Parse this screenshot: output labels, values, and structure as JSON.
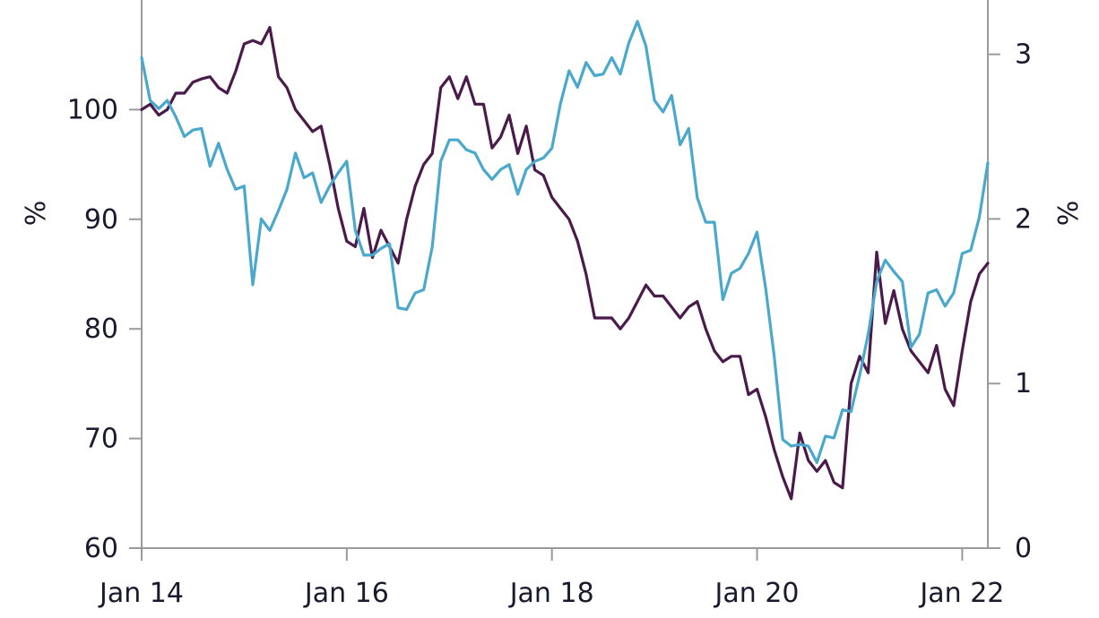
{
  "chart_data": {
    "type": "line",
    "title": "",
    "left_axis": {
      "label": "%",
      "ticks": [
        60,
        70,
        80,
        90,
        100
      ],
      "ylim": [
        60,
        110
      ]
    },
    "right_axis": {
      "label": "%",
      "ticks": [
        0,
        1,
        2,
        3
      ],
      "ylim": [
        0,
        3.33
      ]
    },
    "x_ticks": [
      "Jan 14",
      "Jan 16",
      "Jan 18",
      "Jan 20",
      "Jan 22"
    ],
    "x_range": [
      "2014-01",
      "2022-04"
    ],
    "grid": false,
    "colors": {
      "purple": "#4a1a4a",
      "blue": "#4aa8cc",
      "axis": "#9a9a9a",
      "text": "#1a1a2e"
    },
    "series": [
      {
        "axis": "left",
        "color": "#4a1a4a",
        "x": [
          "2014-01",
          "2014-02",
          "2014-03",
          "2014-04",
          "2014-05",
          "2014-06",
          "2014-07",
          "2014-08",
          "2014-09",
          "2014-10",
          "2014-11",
          "2014-12",
          "2015-01",
          "2015-02",
          "2015-03",
          "2015-04",
          "2015-05",
          "2015-06",
          "2015-07",
          "2015-08",
          "2015-09",
          "2015-10",
          "2015-11",
          "2015-12",
          "2016-01",
          "2016-02",
          "2016-03",
          "2016-04",
          "2016-05",
          "2016-06",
          "2016-07",
          "2016-08",
          "2016-09",
          "2016-10",
          "2016-11",
          "2016-12",
          "2017-01",
          "2017-02",
          "2017-03",
          "2017-04",
          "2017-05",
          "2017-06",
          "2017-07",
          "2017-08",
          "2017-09",
          "2017-10",
          "2017-11",
          "2017-12",
          "2018-01",
          "2018-02",
          "2018-03",
          "2018-04",
          "2018-05",
          "2018-06",
          "2018-07",
          "2018-08",
          "2018-09",
          "2018-10",
          "2018-11",
          "2018-12",
          "2019-01",
          "2019-02",
          "2019-03",
          "2019-04",
          "2019-05",
          "2019-06",
          "2019-07",
          "2019-08",
          "2019-09",
          "2019-10",
          "2019-11",
          "2019-12",
          "2020-01",
          "2020-02",
          "2020-03",
          "2020-04",
          "2020-05",
          "2020-06",
          "2020-07",
          "2020-08",
          "2020-09",
          "2020-10",
          "2020-11",
          "2020-12",
          "2021-01",
          "2021-02",
          "2021-03",
          "2021-04",
          "2021-05",
          "2021-06",
          "2021-07",
          "2021-08",
          "2021-09",
          "2021-10",
          "2021-11",
          "2021-12",
          "2022-01",
          "2022-02",
          "2022-03",
          "2022-04"
        ],
        "values": [
          100.0,
          100.5,
          99.5,
          100.0,
          101.5,
          101.5,
          102.5,
          102.8,
          103.0,
          102.0,
          101.5,
          103.5,
          106.0,
          106.3,
          106.0,
          107.5,
          103.0,
          102.0,
          100.0,
          99.0,
          98.0,
          98.5,
          95.0,
          91.0,
          88.0,
          87.5,
          91.0,
          86.5,
          89.0,
          87.5,
          86.0,
          90.0,
          93.0,
          95.0,
          96.0,
          102.0,
          103.0,
          101.0,
          103.0,
          100.5,
          100.5,
          96.5,
          97.5,
          99.5,
          96.0,
          98.5,
          94.5,
          94.0,
          92.0,
          91.0,
          90.0,
          88.0,
          85.0,
          81.0,
          81.0,
          81.0,
          80.0,
          81.0,
          82.5,
          84.0,
          83.0,
          83.0,
          82.0,
          81.0,
          82.0,
          82.5,
          80.0,
          78.0,
          77.0,
          77.5,
          77.5,
          74.0,
          74.5,
          72.0,
          69.0,
          66.5,
          64.5,
          70.5,
          68.0,
          67.0,
          68.0,
          66.0,
          65.5,
          75.0,
          77.5,
          76.0,
          87.0,
          80.5,
          83.5,
          80.0,
          78.0,
          77.0,
          76.0,
          78.5,
          74.5,
          73.0,
          78.0,
          82.5,
          85.0,
          86.0
        ]
      },
      {
        "axis": "right",
        "color": "#4aa8cc",
        "x": [
          "2014-01",
          "2014-02",
          "2014-03",
          "2014-04",
          "2014-05",
          "2014-06",
          "2014-07",
          "2014-08",
          "2014-09",
          "2014-10",
          "2014-11",
          "2014-12",
          "2015-01",
          "2015-02",
          "2015-03",
          "2015-04",
          "2015-05",
          "2015-06",
          "2015-07",
          "2015-08",
          "2015-09",
          "2015-10",
          "2015-11",
          "2015-12",
          "2016-01",
          "2016-02",
          "2016-03",
          "2016-04",
          "2016-05",
          "2016-06",
          "2016-07",
          "2016-08",
          "2016-09",
          "2016-10",
          "2016-11",
          "2016-12",
          "2017-01",
          "2017-02",
          "2017-03",
          "2017-04",
          "2017-05",
          "2017-06",
          "2017-07",
          "2017-08",
          "2017-09",
          "2017-10",
          "2017-11",
          "2017-12",
          "2018-01",
          "2018-02",
          "2018-03",
          "2018-04",
          "2018-05",
          "2018-06",
          "2018-07",
          "2018-08",
          "2018-09",
          "2018-10",
          "2018-11",
          "2018-12",
          "2019-01",
          "2019-02",
          "2019-03",
          "2019-04",
          "2019-05",
          "2019-06",
          "2019-07",
          "2019-08",
          "2019-09",
          "2019-10",
          "2019-11",
          "2019-12",
          "2020-01",
          "2020-02",
          "2020-03",
          "2020-04",
          "2020-05",
          "2020-06",
          "2020-07",
          "2020-08",
          "2020-09",
          "2020-10",
          "2020-11",
          "2020-12",
          "2021-01",
          "2021-02",
          "2021-03",
          "2021-04",
          "2021-05",
          "2021-06",
          "2021-07",
          "2021-08",
          "2021-09",
          "2021-10",
          "2021-11",
          "2021-12",
          "2022-01",
          "2022-02",
          "2022-03",
          "2022-04"
        ],
        "values": [
          2.98,
          2.72,
          2.67,
          2.72,
          2.62,
          2.5,
          2.54,
          2.55,
          2.32,
          2.46,
          2.3,
          2.18,
          2.2,
          1.6,
          2.0,
          1.93,
          2.05,
          2.18,
          2.4,
          2.25,
          2.28,
          2.1,
          2.2,
          2.28,
          2.35,
          1.93,
          1.78,
          1.78,
          1.82,
          1.85,
          1.46,
          1.45,
          1.55,
          1.57,
          1.83,
          2.35,
          2.48,
          2.48,
          2.42,
          2.4,
          2.3,
          2.24,
          2.3,
          2.33,
          2.15,
          2.3,
          2.35,
          2.37,
          2.43,
          2.7,
          2.9,
          2.8,
          2.95,
          2.87,
          2.88,
          2.98,
          2.88,
          3.07,
          3.2,
          3.05,
          2.72,
          2.65,
          2.75,
          2.45,
          2.55,
          2.13,
          1.98,
          1.98,
          1.51,
          1.67,
          1.7,
          1.79,
          1.92,
          1.58,
          1.17,
          0.66,
          0.62,
          0.63,
          0.62,
          0.52,
          0.68,
          0.67,
          0.84,
          0.83,
          1.05,
          1.3,
          1.62,
          1.75,
          1.68,
          1.62,
          1.22,
          1.3,
          1.55,
          1.57,
          1.47,
          1.55,
          1.79,
          1.81,
          2.01,
          2.34
        ]
      }
    ]
  }
}
